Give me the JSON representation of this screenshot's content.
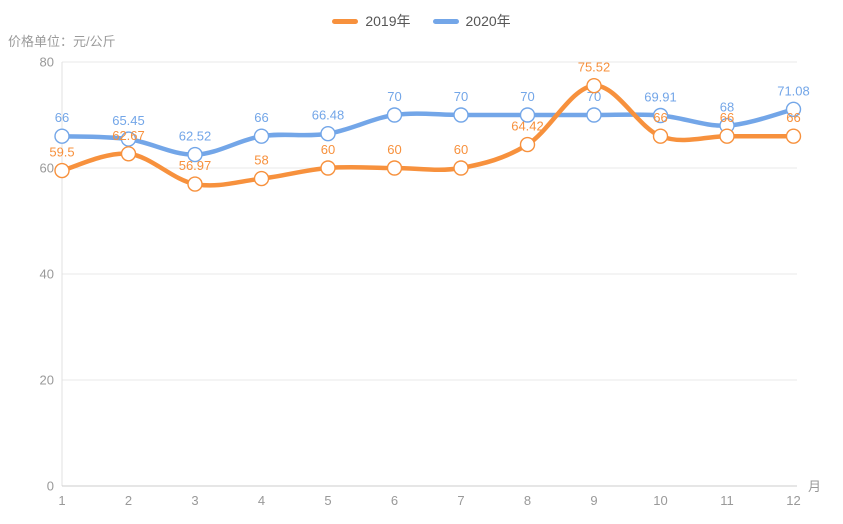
{
  "style": {
    "background": "#FFFFFF",
    "tick_color": "#999999",
    "grid_color": "#E9E9E9",
    "y_axis_color": "#E0E0E0",
    "x_axis_color": "#CCCCCC",
    "legend_text_color": "#565656",
    "axis_title_color": "#9B9B9B",
    "marker_fill": "#FFFFFF"
  },
  "chart_data": {
    "type": "line",
    "title": "",
    "xlabel": "月",
    "ylabel": "价格单位：元/公斤",
    "x": [
      1,
      2,
      3,
      4,
      5,
      6,
      7,
      8,
      9,
      10,
      11,
      12
    ],
    "ylim": [
      0,
      80
    ],
    "yticks": [
      0,
      20,
      40,
      60,
      80
    ],
    "grid": true,
    "smooth": true,
    "legend_position": "top-center",
    "series": [
      {
        "name": "2019年",
        "color": "#F7913D",
        "values": [
          59.5,
          62.67,
          56.97,
          58,
          60,
          60,
          60,
          64.42,
          75.52,
          66,
          66,
          66
        ]
      },
      {
        "name": "2020年",
        "color": "#73A6E8",
        "values": [
          66,
          65.45,
          62.52,
          66,
          66.48,
          70,
          70,
          70,
          70,
          69.91,
          68,
          71.08
        ]
      }
    ]
  }
}
